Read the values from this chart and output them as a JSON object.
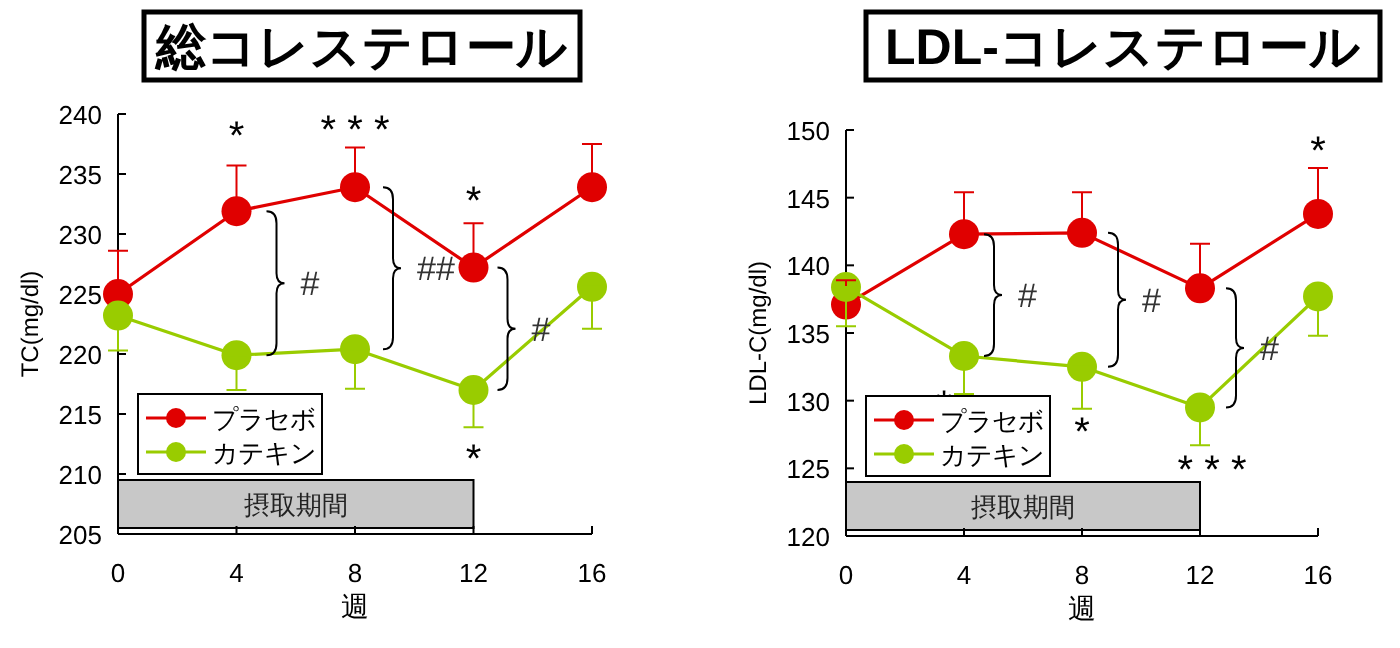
{
  "chart_data": [
    {
      "type": "line",
      "title": "総コレステロール",
      "xlabel": "週",
      "ylabel": "TC(mg/dl)",
      "x": [
        0,
        4,
        8,
        12,
        16
      ],
      "xlim": [
        0,
        16
      ],
      "xticks": [
        0,
        4,
        8,
        12,
        16
      ],
      "ylim": [
        205,
        240
      ],
      "yticks": [
        205,
        210,
        215,
        220,
        225,
        230,
        235,
        240
      ],
      "marker": "circle",
      "legend": "bottom left",
      "series": [
        {
          "name": "プラセボ",
          "color": "#e00000",
          "values": [
            225,
            231.9,
            233.9,
            227.2,
            233.9
          ],
          "errors": [
            [
              225,
              228.6
            ],
            [
              231.9,
              235.7
            ],
            [
              233.9,
              237.2
            ],
            [
              227.2,
              230.9
            ],
            [
              233.9,
              237.5
            ]
          ]
        },
        {
          "name": "カテキン",
          "color": "#99cc00",
          "values": [
            223.2,
            219.9,
            220.4,
            217,
            225.6
          ],
          "errors": [
            [
              220.3,
              223.2
            ],
            [
              217,
              219.9
            ],
            [
              217.1,
              220.4
            ],
            [
              213.9,
              217
            ],
            [
              222.1,
              225.6
            ]
          ]
        }
      ],
      "bands": [
        {
          "axis": "x",
          "from": 0,
          "to": 12,
          "label": "摂取期間",
          "color": "#c8c8c8"
        }
      ],
      "annotations": [
        {
          "text": "*",
          "x": 4,
          "y": 231.9
        },
        {
          "text": "* * *",
          "x": 8,
          "y": 233.9
        },
        {
          "text": "*",
          "x": 12,
          "y": 227.2
        },
        {
          "text": "*",
          "x": 12,
          "y": 217
        },
        {
          "text": "#",
          "x": 4,
          "y": 231.9
        },
        {
          "text": "##",
          "x": 8,
          "y": 233.9
        },
        {
          "text": "#",
          "x": 12,
          "y": 227.2
        }
      ]
    },
    {
      "type": "line",
      "title": "LDL-コレステロール",
      "xlabel": "週",
      "ylabel": "LDL-C(mg/dl)",
      "x": [
        0,
        4,
        8,
        12,
        16
      ],
      "xlim": [
        0,
        16
      ],
      "xticks": [
        0,
        4,
        8,
        12,
        16
      ],
      "ylim": [
        120,
        150
      ],
      "yticks": [
        120,
        125,
        130,
        135,
        140,
        145,
        150
      ],
      "marker": "circle",
      "legend": "bottom left",
      "series": [
        {
          "name": "プラセボ",
          "color": "#e00000",
          "values": [
            137.1,
            142.3,
            142.4,
            138.3,
            143.8
          ],
          "errors": [
            [
              137.1,
              138.9
            ],
            [
              142.3,
              145.4
            ],
            [
              142.4,
              145.4
            ],
            [
              138.3,
              141.6
            ],
            [
              143.8,
              147.2
            ]
          ]
        },
        {
          "name": "カテキン",
          "color": "#99cc00",
          "values": [
            138.4,
            133.3,
            132.5,
            129.5,
            137.7
          ],
          "errors": [
            [
              135.5,
              138.4
            ],
            [
              130.5,
              133.3
            ],
            [
              129.4,
              132.5
            ],
            [
              126.7,
              129.5
            ],
            [
              134.8,
              137.7
            ]
          ]
        }
      ],
      "bands": [
        {
          "axis": "x",
          "from": 0,
          "to": 12,
          "label": "摂取期間",
          "color": "#c8c8c8"
        }
      ],
      "annotations": [
        {
          "text": "*",
          "x": 4,
          "y": 133.3
        },
        {
          "text": "*",
          "x": 8,
          "y": 132.5
        },
        {
          "text": "* * *",
          "x": 12,
          "y": 129.5
        },
        {
          "text": "*",
          "x": 16,
          "y": 143.8
        },
        {
          "text": "#",
          "x": 4,
          "y": 142.3
        },
        {
          "text": "#",
          "x": 8,
          "y": 142.4
        },
        {
          "text": "#",
          "x": 12,
          "y": 138.3
        }
      ]
    }
  ]
}
